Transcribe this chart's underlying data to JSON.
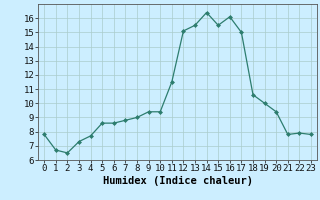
{
  "x": [
    0,
    1,
    2,
    3,
    4,
    5,
    6,
    7,
    8,
    9,
    10,
    11,
    12,
    13,
    14,
    15,
    16,
    17,
    18,
    19,
    20,
    21,
    22,
    23
  ],
  "y": [
    7.8,
    6.7,
    6.5,
    7.3,
    7.7,
    8.6,
    8.6,
    8.8,
    9.0,
    9.4,
    9.4,
    11.5,
    15.1,
    15.5,
    16.4,
    15.5,
    16.1,
    15.0,
    10.6,
    10.0,
    9.4,
    7.8,
    7.9,
    7.8
  ],
  "xlabel": "Humidex (Indice chaleur)",
  "ylim": [
    6,
    17
  ],
  "xlim": [
    -0.5,
    23.5
  ],
  "yticks": [
    6,
    7,
    8,
    9,
    10,
    11,
    12,
    13,
    14,
    15,
    16
  ],
  "xticks": [
    0,
    1,
    2,
    3,
    4,
    5,
    6,
    7,
    8,
    9,
    10,
    11,
    12,
    13,
    14,
    15,
    16,
    17,
    18,
    19,
    20,
    21,
    22,
    23
  ],
  "line_color": "#2d7d6e",
  "marker": "D",
  "marker_size": 2.0,
  "bg_color": "#cceeff",
  "grid_color": "#aacccc",
  "xlabel_fontsize": 7.5,
  "tick_fontsize": 6.5,
  "fig_width": 3.2,
  "fig_height": 2.0,
  "dpi": 100
}
